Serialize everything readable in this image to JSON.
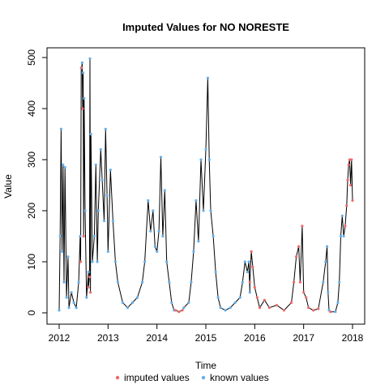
{
  "chart_data": {
    "type": "line",
    "title": "Imputed Values for  NO NORESTE",
    "xlabel": "Time",
    "ylabel": "Value",
    "xlim": [
      2012,
      2018
    ],
    "ylim": [
      0,
      500
    ],
    "x_ticks": [
      "2012",
      "2013",
      "2014",
      "2015",
      "2016",
      "2017",
      "2018"
    ],
    "y_ticks": [
      "0",
      "100",
      "200",
      "300",
      "400",
      "500"
    ],
    "grid": false,
    "legend": "bottom",
    "colors": {
      "line": "#000000",
      "imputed": "#ED6A6A",
      "known": "#64AEEA"
    },
    "series": [
      {
        "name": "known values",
        "points": [
          [
            2012.0,
            5
          ],
          [
            2012.02,
            150
          ],
          [
            2012.04,
            360
          ],
          [
            2012.06,
            120
          ],
          [
            2012.08,
            290
          ],
          [
            2012.1,
            60
          ],
          [
            2012.12,
            285
          ],
          [
            2012.15,
            30
          ],
          [
            2012.18,
            110
          ],
          [
            2012.2,
            10
          ],
          [
            2012.25,
            40
          ],
          [
            2012.3,
            20
          ],
          [
            2012.35,
            10
          ],
          [
            2012.4,
            60
          ],
          [
            2012.43,
            150
          ],
          [
            2012.45,
            480
          ],
          [
            2012.47,
            490
          ],
          [
            2012.49,
            470
          ],
          [
            2012.51,
            420
          ],
          [
            2012.53,
            200
          ],
          [
            2012.56,
            30
          ],
          [
            2012.6,
            80
          ],
          [
            2012.63,
            498
          ],
          [
            2012.65,
            350
          ],
          [
            2012.68,
            100
          ],
          [
            2012.72,
            150
          ],
          [
            2012.75,
            290
          ],
          [
            2012.78,
            100
          ],
          [
            2012.8,
            200
          ],
          [
            2012.85,
            320
          ],
          [
            2012.88,
            260
          ],
          [
            2012.92,
            180
          ],
          [
            2012.95,
            360
          ],
          [
            2012.98,
            230
          ],
          [
            2013.0,
            120
          ],
          [
            2013.05,
            280
          ],
          [
            2013.1,
            180
          ],
          [
            2013.15,
            100
          ],
          [
            2013.2,
            60
          ],
          [
            2013.3,
            20
          ],
          [
            2013.4,
            10
          ],
          [
            2013.5,
            20
          ],
          [
            2013.6,
            30
          ],
          [
            2013.7,
            60
          ],
          [
            2013.75,
            100
          ],
          [
            2013.82,
            220
          ],
          [
            2013.87,
            160
          ],
          [
            2013.92,
            200
          ],
          [
            2013.96,
            130
          ],
          [
            2014.0,
            120
          ],
          [
            2014.04,
            160
          ],
          [
            2014.08,
            305
          ],
          [
            2014.12,
            150
          ],
          [
            2014.16,
            240
          ],
          [
            2014.2,
            100
          ],
          [
            2014.25,
            60
          ],
          [
            2014.3,
            20
          ],
          [
            2014.35,
            5
          ],
          [
            2014.55,
            10
          ],
          [
            2014.65,
            20
          ],
          [
            2014.7,
            60
          ],
          [
            2014.75,
            120
          ],
          [
            2014.8,
            220
          ],
          [
            2014.85,
            140
          ],
          [
            2014.9,
            300
          ],
          [
            2014.95,
            200
          ],
          [
            2015.0,
            320
          ],
          [
            2015.04,
            460
          ],
          [
            2015.07,
            300
          ],
          [
            2015.1,
            200
          ],
          [
            2015.15,
            150
          ],
          [
            2015.2,
            80
          ],
          [
            2015.25,
            30
          ],
          [
            2015.3,
            10
          ],
          [
            2015.4,
            5
          ],
          [
            2015.5,
            10
          ],
          [
            2015.6,
            20
          ],
          [
            2015.7,
            30
          ],
          [
            2015.75,
            60
          ],
          [
            2015.8,
            100
          ],
          [
            2015.85,
            80
          ],
          [
            2015.88,
            100
          ],
          [
            2015.9,
            40
          ],
          [
            2017.4,
            60
          ],
          [
            2017.45,
            100
          ],
          [
            2017.48,
            130
          ],
          [
            2017.5,
            40
          ],
          [
            2017.52,
            5
          ],
          [
            2017.65,
            2
          ],
          [
            2017.7,
            20
          ],
          [
            2017.73,
            60
          ],
          [
            2017.76,
            150
          ],
          [
            2017.79,
            190
          ],
          [
            2017.82,
            150
          ],
          [
            2017.85,
            170
          ]
        ]
      },
      {
        "name": "imputed values",
        "points": [
          [
            2012.44,
            100
          ],
          [
            2012.46,
            480
          ],
          [
            2012.48,
            400
          ],
          [
            2012.5,
            150
          ],
          [
            2012.6,
            50
          ],
          [
            2012.62,
            70
          ],
          [
            2012.64,
            40
          ],
          [
            2014.38,
            5
          ],
          [
            2014.45,
            2
          ],
          [
            2014.52,
            5
          ],
          [
            2015.9,
            60
          ],
          [
            2015.93,
            120
          ],
          [
            2015.96,
            90
          ],
          [
            2016.0,
            50
          ],
          [
            2016.05,
            30
          ],
          [
            2016.1,
            10
          ],
          [
            2016.2,
            25
          ],
          [
            2016.3,
            10
          ],
          [
            2016.45,
            15
          ],
          [
            2016.6,
            5
          ],
          [
            2016.75,
            20
          ],
          [
            2016.8,
            60
          ],
          [
            2016.85,
            110
          ],
          [
            2016.9,
            130
          ],
          [
            2016.93,
            60
          ],
          [
            2016.97,
            170
          ],
          [
            2017.0,
            40
          ],
          [
            2017.05,
            30
          ],
          [
            2017.1,
            10
          ],
          [
            2017.2,
            5
          ],
          [
            2017.3,
            8
          ],
          [
            2017.55,
            2
          ],
          [
            2017.85,
            170
          ],
          [
            2017.88,
            210
          ],
          [
            2017.9,
            260
          ],
          [
            2017.92,
            290
          ],
          [
            2017.94,
            300
          ],
          [
            2017.96,
            250
          ],
          [
            2017.98,
            300
          ],
          [
            2018.0,
            220
          ]
        ]
      }
    ]
  },
  "legend": {
    "imputed_label": "imputed values",
    "known_label": "known values"
  }
}
